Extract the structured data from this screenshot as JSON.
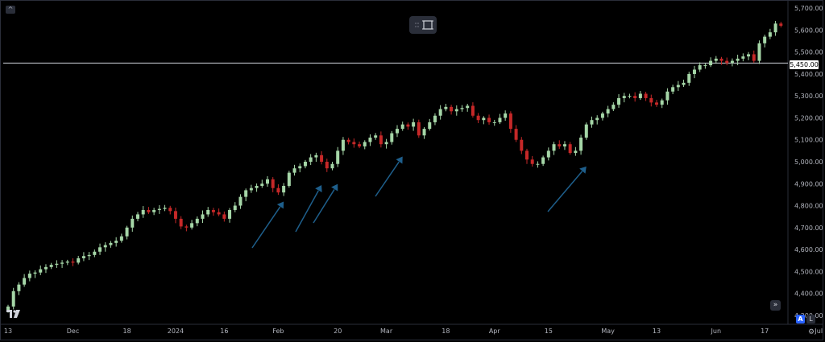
{
  "chart_data": {
    "type": "candlestick",
    "ylim": [
      4270,
      5730
    ],
    "y_ticks": [
      5700,
      5600,
      5500,
      5450,
      5400,
      5300,
      5200,
      5100,
      5000,
      4900,
      4800,
      4700,
      4600,
      4500,
      4400,
      4300
    ],
    "y_tick_labels": [
      "5,700.00",
      "5,600.00",
      "5,500.00",
      "5,450.00",
      "5,400.00",
      "5,300.00",
      "5,200.00",
      "5,100.00",
      "5,000.00",
      "4,900.00",
      "4,800.00",
      "4,700.00",
      "4,600.00",
      "4,500.00",
      "4,400.00",
      "4,300.00"
    ],
    "x_tick_labels": [
      "13",
      "Dec",
      "18",
      "2024",
      "16",
      "Feb",
      "20",
      "Mar",
      "18",
      "Apr",
      "15",
      "May",
      "13",
      "Jun",
      "17",
      "Jul"
    ],
    "x_tick_bars": [
      0,
      12,
      22,
      31,
      40,
      50,
      61,
      70,
      81,
      90,
      100,
      111,
      120,
      131,
      140,
      150
    ],
    "horizontal_line": 5450,
    "current_price_label": "5,450.00",
    "closes": [
      4340,
      4410,
      4440,
      4470,
      4490,
      4495,
      4510,
      4520,
      4530,
      4535,
      4540,
      4545,
      4540,
      4560,
      4570,
      4575,
      4590,
      4610,
      4620,
      4630,
      4640,
      4660,
      4700,
      4740,
      4760,
      4780,
      4770,
      4780,
      4785,
      4790,
      4775,
      4740,
      4705,
      4700,
      4720,
      4740,
      4760,
      4780,
      4770,
      4760,
      4740,
      4780,
      4800,
      4840,
      4870,
      4880,
      4890,
      4900,
      4920,
      4880,
      4860,
      4890,
      4950,
      4970,
      4980,
      5000,
      5020,
      5030,
      5000,
      4970,
      4990,
      5050,
      5100,
      5090,
      5080,
      5070,
      5090,
      5110,
      5120,
      5080,
      5090,
      5130,
      5150,
      5170,
      5160,
      5180,
      5120,
      5150,
      5180,
      5210,
      5240,
      5250,
      5230,
      5240,
      5245,
      5255,
      5210,
      5190,
      5200,
      5180,
      5180,
      5200,
      5220,
      5150,
      5100,
      5050,
      5010,
      4990,
      4990,
      5020,
      5050,
      5080,
      5070,
      5080,
      5040,
      5050,
      5110,
      5170,
      5190,
      5200,
      5220,
      5240,
      5260,
      5290,
      5300,
      5300,
      5290,
      5310,
      5290,
      5270,
      5260,
      5280,
      5320,
      5340,
      5350,
      5360,
      5400,
      5420,
      5440,
      5440,
      5460,
      5470,
      5460,
      5450,
      5460,
      5470,
      5480,
      5490,
      5460,
      5540,
      5570,
      5590,
      5630,
      5620
    ],
    "series": [
      {
        "name": "",
        "values_key": "closes"
      }
    ],
    "annotations": [
      "arrow",
      "arrow",
      "arrow",
      "arrow",
      "arrow"
    ]
  },
  "toolbar": {
    "select_icon": "crop-frame-icon"
  },
  "controls": {
    "collapse_label": "^",
    "goto_label": "»",
    "auto_label": "A",
    "log_label": "L",
    "settings_icon": "gear-icon"
  },
  "colors": {
    "up": "#a5d6a7",
    "down": "#c62828",
    "arrow": "#1e5f8c",
    "grid": "#000000",
    "line": "#d1d4dc"
  }
}
